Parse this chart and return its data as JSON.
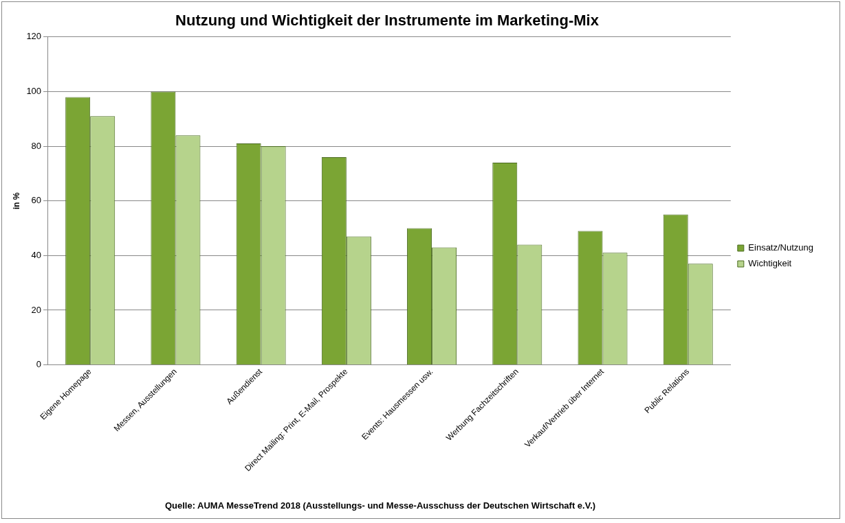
{
  "chart_data": {
    "type": "bar",
    "title": "Nutzung und Wichtigkeit der Instrumente im Marketing-Mix",
    "ylabel": "in %",
    "categories": [
      "Eigene Homepage",
      "Messen, Ausstellungen",
      "Außendienst",
      "Direct Mailing: Print, E-Mail, Prospekte",
      "Events: Hausmessen usw.",
      "Werbung Fachzeitschriften",
      "Verkauf/Vertrieb über Internet",
      "Public Relations"
    ],
    "series": [
      {
        "name": "Einsatz/Nutzung",
        "color": "#7ba534",
        "values": [
          98,
          100,
          81,
          76,
          50,
          74,
          49,
          55
        ]
      },
      {
        "name": "Wichtigkeit",
        "color": "#b6d38c",
        "values": [
          91,
          84,
          80,
          47,
          43,
          44,
          41,
          37
        ]
      }
    ],
    "ylim": [
      0,
      120
    ],
    "yticks": [
      0,
      20,
      40,
      60,
      80,
      100,
      120
    ],
    "grid": "y",
    "legend": "right",
    "annotations": [
      "Quelle: AUMA MesseTrend 2018 (Ausstellungs- und Messe-Ausschuss der Deutschen Wirtschaft e.V.)"
    ]
  }
}
